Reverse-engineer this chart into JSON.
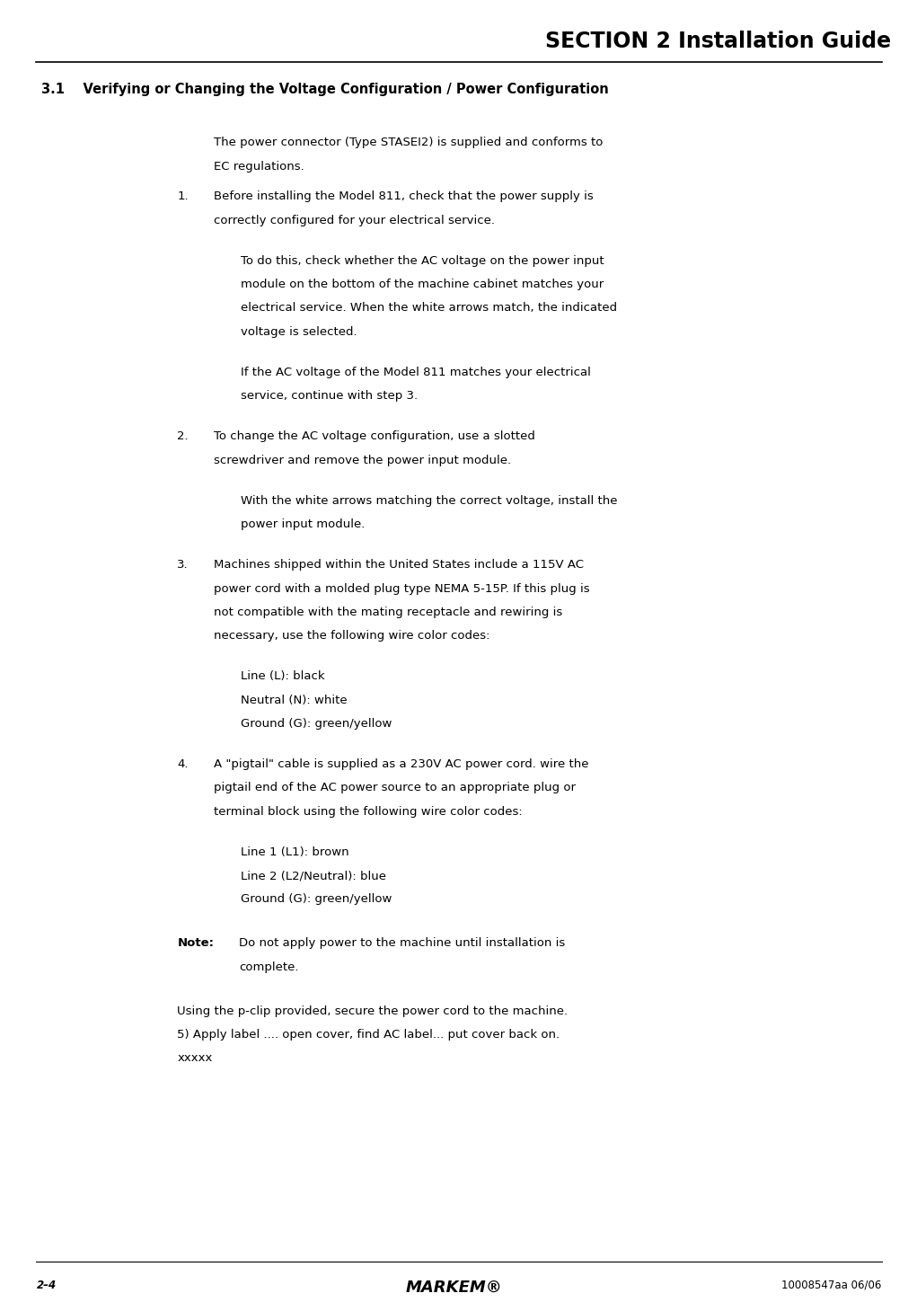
{
  "title": "SECTION 2 Installation Guide",
  "section_heading": "3.1    Verifying or Changing the Voltage Configuration / Power Configuration",
  "intro_text": "The power connector (Type STASEI2) is supplied and conforms to\nEC regulations.",
  "items": [
    {
      "number": "1.",
      "lines": [
        "Before installing the Model 811, check that the power supply is",
        "correctly configured for your electrical service."
      ],
      "sub_paragraphs": [
        "To do this, check whether the AC voltage on the power input\nmodule on the bottom of the machine cabinet matches your\nelectrical service. When the white arrows match, the indicated\nvoltage is selected.",
        "If the AC voltage of the Model 811 matches your electrical\nservice, continue with step 3."
      ]
    },
    {
      "number": "2.",
      "lines": [
        "To change the AC voltage configuration, use a slotted",
        "screwdriver and remove the power input module."
      ],
      "sub_paragraphs": [
        "With the white arrows matching the correct voltage, install the\npower input module."
      ]
    },
    {
      "number": "3.",
      "lines": [
        "Machines shipped within the United States include a 115V AC",
        "power cord with a molded plug type NEMA 5-15P. If this plug is",
        "not compatible with the mating receptacle and rewiring is",
        "necessary, use the following wire color codes:"
      ],
      "sub_paragraphs": [
        "Line (L): black\nNeutral (N): white\nGround (G): green/yellow"
      ]
    },
    {
      "number": "4.",
      "lines": [
        "A \"pigtail\" cable is supplied as a 230V AC power cord. wire the",
        "pigtail end of the AC power source to an appropriate plug or",
        "terminal block using the following wire color codes:"
      ],
      "sub_paragraphs": [
        "Line 1 (L1): brown\nLine 2 (L2/Neutral): blue\nGround (G): green/yellow"
      ]
    }
  ],
  "note_label": "Note:",
  "note_text": "Do not apply power to the machine until installation is\ncomplete.",
  "footer_items": [
    "Using the p-clip provided, secure the power cord to the machine.",
    "5) Apply label .... open cover, find AC label... put cover back on.",
    "xxxxx"
  ],
  "page_left": "2–4",
  "page_center": "MARKEM®",
  "page_right": "10008547aa 06/06",
  "bg_color": "#ffffff",
  "text_color": "#000000"
}
